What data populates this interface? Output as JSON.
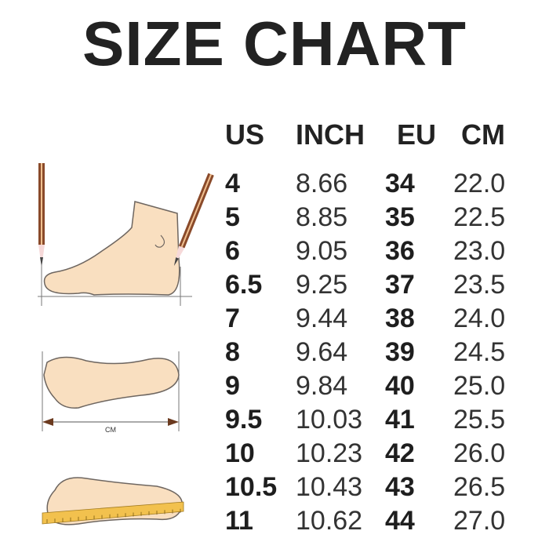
{
  "title": "SIZE CHART",
  "columns": [
    "US",
    "INCH",
    "EU",
    "CM"
  ],
  "rows": [
    [
      "4",
      "8.66",
      "34",
      "22.0"
    ],
    [
      "5",
      "8.85",
      "35",
      "22.5"
    ],
    [
      "6",
      "9.05",
      "36",
      "23.0"
    ],
    [
      "6.5",
      "9.25",
      "37",
      "23.5"
    ],
    [
      "7",
      "9.44",
      "38",
      "24.0"
    ],
    [
      "8",
      "9.64",
      "39",
      "24.5"
    ],
    [
      "9",
      "9.84",
      "40",
      "25.0"
    ],
    [
      "9.5",
      "10.03",
      "41",
      "25.5"
    ],
    [
      "10",
      "10.23",
      "42",
      "26.0"
    ],
    [
      "10.5",
      "10.43",
      "43",
      "26.5"
    ],
    [
      "11",
      "10.62",
      "44",
      "27.0"
    ]
  ],
  "illustration": {
    "measure_label": "CM"
  },
  "colors": {
    "text": "#222222",
    "skin": "#f9dfc0",
    "outline": "#6e6660",
    "pencil": "#8a4a2a",
    "ruler": "#f2c14e"
  }
}
